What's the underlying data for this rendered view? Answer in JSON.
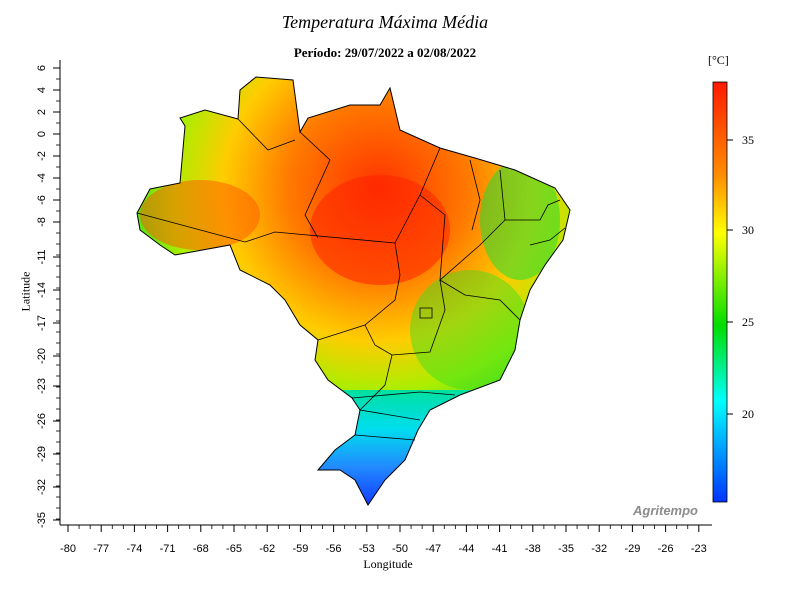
{
  "title": "Temperatura Máxima Média",
  "subtitle": "Período: 29/07/2022 a 02/08/2022",
  "unit": "[°C]",
  "xlabel": "Longitude",
  "ylabel": "Latitude",
  "watermark": "Agritempo",
  "x_ticks": [
    "-80",
    "-77",
    "-74",
    "-71",
    "-68",
    "-65",
    "-62",
    "-59",
    "-56",
    "-53",
    "-50",
    "-47",
    "-44",
    "-41",
    "-38",
    "-35",
    "-32",
    "-29",
    "-26",
    "-23"
  ],
  "y_ticks": [
    "6",
    "4",
    "2",
    "0",
    "-2",
    "-4",
    "-6",
    "-8",
    "-11",
    "-14",
    "-17",
    "-20",
    "-23",
    "-26",
    "-29",
    "-32",
    "-35"
  ],
  "colorbar": {
    "ticks": [
      "35",
      "30",
      "25",
      "20"
    ],
    "colors": [
      "#ff1a00",
      "#ff8c00",
      "#ffff00",
      "#00dd00",
      "#00ffff",
      "#0033ff"
    ]
  },
  "colors": {
    "hot": "#ff3300",
    "warm": "#ff9900",
    "mild": "#ffee00",
    "cool": "#22dd22",
    "cold": "#00e5ff",
    "coldest": "#1144ff"
  }
}
